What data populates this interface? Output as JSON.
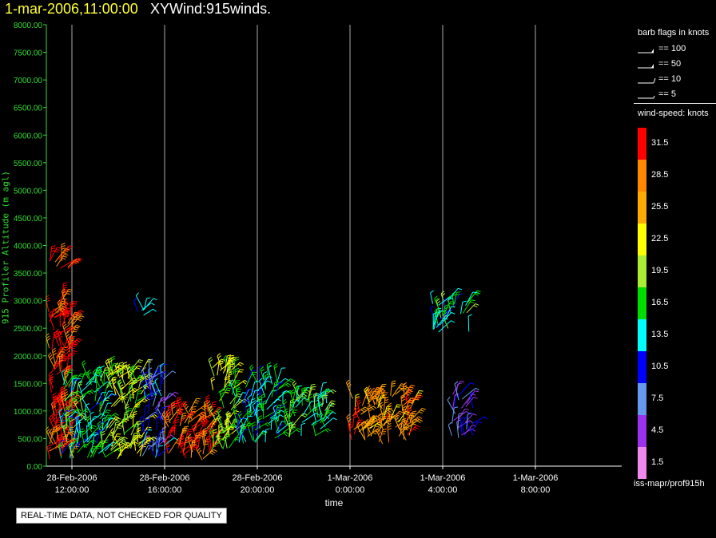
{
  "header": {
    "datetime": "1-mar-2006,11:00:00",
    "product": "XYWind:915winds."
  },
  "warning_label": "REAL-TIME DATA, NOT CHECKED FOR QUALITY",
  "colors": {
    "background": "#000000",
    "axis": "#33dd33",
    "title_date": "#ffff33",
    "gridline": "#aaaaaa"
  },
  "legend": {
    "barb_title": "barb flags in knots",
    "barbs": [
      {
        "label": "== 100",
        "value": 100
      },
      {
        "label": "== 50",
        "value": 50
      },
      {
        "label": "== 10",
        "value": 10
      },
      {
        "label": "== 5",
        "value": 5
      }
    ],
    "speed_title": "wind-speed: knots",
    "speed_bins": [
      {
        "label": "31.5",
        "color": "#ff0000"
      },
      {
        "label": "28.5",
        "color": "#ff8800"
      },
      {
        "label": "25.5",
        "color": "#ffaa00"
      },
      {
        "label": "22.5",
        "color": "#ffff00"
      },
      {
        "label": "19.5",
        "color": "#aaee33"
      },
      {
        "label": "16.5",
        "color": "#00dd00"
      },
      {
        "label": "13.5",
        "color": "#00ffff"
      },
      {
        "label": "10.5",
        "color": "#0000ff"
      },
      {
        "label": "7.5",
        "color": "#6699ee"
      },
      {
        "label": "4.5",
        "color": "#9933ee"
      },
      {
        "label": "1.5",
        "color": "#ee88ee"
      }
    ],
    "footer": "iss-mapr/prof915h"
  },
  "chart_data": {
    "type": "scatter",
    "mark": "wind-barb",
    "title": "XYWind:915winds.",
    "xlabel": "time",
    "ylabel": "915 Profiler Altitude (m agl)",
    "ylim": [
      0,
      8000
    ],
    "yticks": [
      "0.00",
      "500.00",
      "1000.00",
      "1500.00",
      "2000.00",
      "2500.00",
      "3000.00",
      "3500.00",
      "4000.00",
      "4500.00",
      "5000.00",
      "5500.00",
      "6000.00",
      "6500.00",
      "7000.00",
      "7500.00",
      "8000.00"
    ],
    "xticks": [
      {
        "date": "28-Feb-2006",
        "time": "12:00:00"
      },
      {
        "date": "28-Feb-2006",
        "time": "16:00:00"
      },
      {
        "date": "28-Feb-2006",
        "time": "20:00:00"
      },
      {
        "date": "1-Mar-2006",
        "time": "0:00:00"
      },
      {
        "date": "1-Mar-2006",
        "time": "4:00:00"
      },
      {
        "date": "1-Mar-2006",
        "time": "8:00:00"
      }
    ],
    "grid": "vertical",
    "clusters": [
      {
        "t_start": "28-Feb-2006 11:00",
        "t_end": "28-Feb-2006 12:00",
        "alt_min": 100,
        "alt_max": 3100,
        "speed_knots": 31
      },
      {
        "t_start": "28-Feb-2006 10:50",
        "t_end": "28-Feb-2006 11:50",
        "alt_min": 3550,
        "alt_max": 3800,
        "speed_knots": 31
      },
      {
        "t_start": "28-Feb-2006 11:30",
        "t_end": "28-Feb-2006 13:30",
        "alt_min": 100,
        "alt_max": 1600,
        "speed_knots": 15
      },
      {
        "t_start": "28-Feb-2006 13:30",
        "t_end": "28-Feb-2006 15:00",
        "alt_min": 100,
        "alt_max": 1700,
        "speed_knots": 20
      },
      {
        "t_start": "28-Feb-2006 15:00",
        "t_end": "28-Feb-2006 16:00",
        "alt_min": 100,
        "alt_max": 1700,
        "speed_knots": 9
      },
      {
        "t_start": "28-Feb-2006 14:50",
        "t_end": "28-Feb-2006 15:10",
        "alt_min": 2700,
        "alt_max": 2900,
        "speed_knots": 13
      },
      {
        "t_start": "28-Feb-2006 16:00",
        "t_end": "28-Feb-2006 18:00",
        "alt_min": 100,
        "alt_max": 1000,
        "speed_knots": 30
      },
      {
        "t_start": "28-Feb-2006 18:00",
        "t_end": "28-Feb-2006 19:00",
        "alt_min": 300,
        "alt_max": 1800,
        "speed_knots": 20
      },
      {
        "t_start": "28-Feb-2006 19:00",
        "t_end": "28-Feb-2006 21:00",
        "alt_min": 400,
        "alt_max": 1600,
        "speed_knots": 14
      },
      {
        "t_start": "28-Feb-2006 21:00",
        "t_end": "28-Feb-2006 23:00",
        "alt_min": 500,
        "alt_max": 1300,
        "speed_knots": 17
      },
      {
        "t_start": "1-Mar-2006 00:00",
        "t_end": "1-Mar-2006 02:40",
        "alt_min": 400,
        "alt_max": 1300,
        "speed_knots": 27
      },
      {
        "t_start": "1-Mar-2006 03:30",
        "t_end": "1-Mar-2006 05:10",
        "alt_min": 2400,
        "alt_max": 3000,
        "speed_knots": 15
      },
      {
        "t_start": "1-Mar-2006 04:20",
        "t_end": "1-Mar-2006 05:20",
        "alt_min": 500,
        "alt_max": 1300,
        "speed_knots": 8
      }
    ]
  }
}
